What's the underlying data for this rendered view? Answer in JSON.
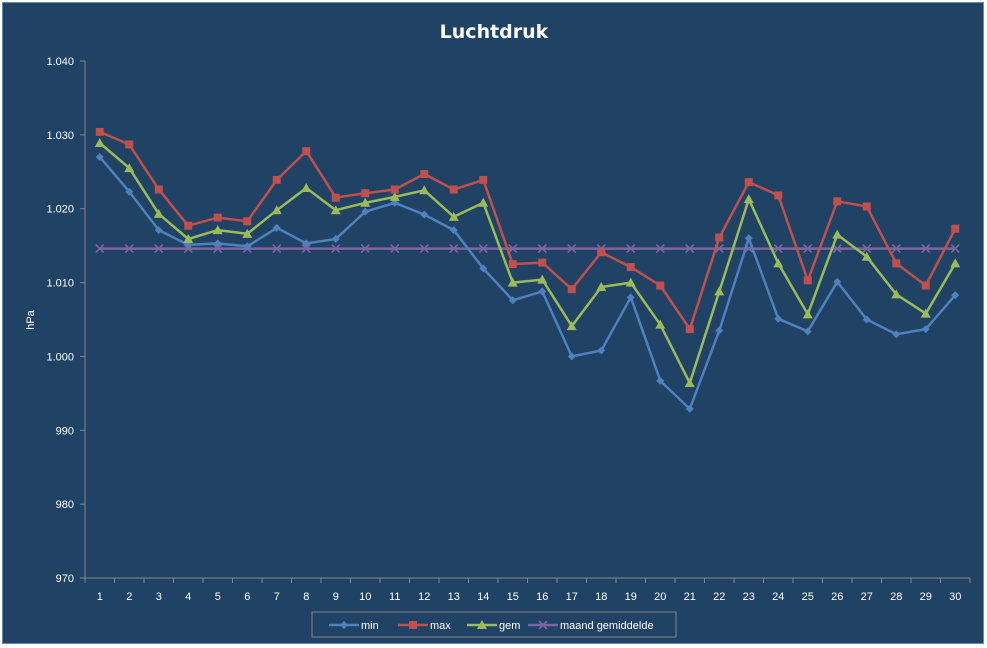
{
  "chart_data": {
    "type": "line",
    "title": "Luchtdruk",
    "xlabel": "",
    "ylabel": "hPa",
    "ylim": [
      970,
      1040
    ],
    "yticks": [
      "970",
      "980",
      "990",
      "1.000",
      "1.010",
      "1.020",
      "1.030",
      "1.040"
    ],
    "grid": false,
    "legend_position": "bottom",
    "categories": [
      "1",
      "2",
      "3",
      "4",
      "5",
      "6",
      "7",
      "8",
      "9",
      "10",
      "11",
      "12",
      "13",
      "14",
      "15",
      "16",
      "17",
      "18",
      "19",
      "20",
      "21",
      "22",
      "23",
      "24",
      "25",
      "26",
      "27",
      "28",
      "29",
      "30"
    ],
    "series": [
      {
        "name": "min",
        "color": "#4f81bd",
        "marker": "diamond",
        "values": [
          1027.0,
          1022.3,
          1017.1,
          1015.1,
          1015.3,
          1014.9,
          1017.4,
          1015.3,
          1015.9,
          1019.6,
          1020.8,
          1019.2,
          1017.1,
          1011.9,
          1007.6,
          1008.8,
          1000.0,
          1000.8,
          1008.0,
          996.7,
          992.9,
          1003.5,
          1016.0,
          1005.1,
          1003.4,
          1010.1,
          1005.0,
          1003.0,
          1003.7,
          1008.3
        ]
      },
      {
        "name": "max",
        "color": "#c0504d",
        "marker": "square",
        "values": [
          1030.4,
          1028.7,
          1022.6,
          1017.7,
          1018.8,
          1018.3,
          1023.9,
          1027.8,
          1021.5,
          1022.1,
          1022.6,
          1024.7,
          1022.6,
          1023.9,
          1012.5,
          1012.7,
          1009.1,
          1014.1,
          1012.1,
          1009.6,
          1003.7,
          1016.1,
          1023.6,
          1021.8,
          1010.3,
          1021.0,
          1020.3,
          1012.6,
          1009.6,
          1017.3
        ]
      },
      {
        "name": "gem",
        "color": "#9bbb59",
        "marker": "triangle",
        "values": [
          1028.9,
          1025.5,
          1019.3,
          1015.9,
          1017.1,
          1016.6,
          1019.8,
          1022.8,
          1019.8,
          1020.8,
          1021.6,
          1022.5,
          1018.9,
          1020.8,
          1010.0,
          1010.4,
          1004.1,
          1009.4,
          1010.0,
          1004.3,
          996.4,
          1008.8,
          1021.3,
          1012.6,
          1005.7,
          1016.5,
          1013.5,
          1008.4,
          1005.8,
          1012.6
        ]
      },
      {
        "name": "maand gemiddelde",
        "color": "#8064a2",
        "marker": "x",
        "values": [
          1014.6,
          1014.6,
          1014.6,
          1014.6,
          1014.6,
          1014.6,
          1014.6,
          1014.6,
          1014.6,
          1014.6,
          1014.6,
          1014.6,
          1014.6,
          1014.6,
          1014.6,
          1014.6,
          1014.6,
          1014.6,
          1014.6,
          1014.6,
          1014.6,
          1014.6,
          1014.6,
          1014.6,
          1014.6,
          1014.6,
          1014.6,
          1014.6,
          1014.6,
          1014.6
        ]
      }
    ]
  }
}
